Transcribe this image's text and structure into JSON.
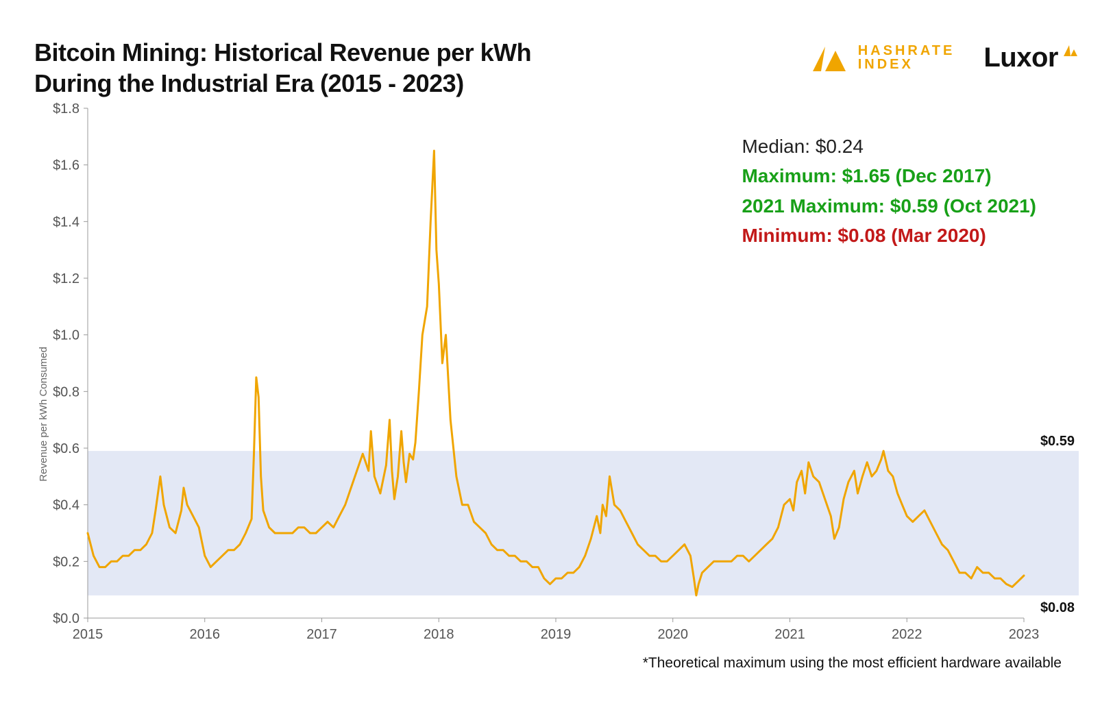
{
  "title_line1": "Bitcoin Mining: Historical Revenue per kWh",
  "title_line2": "During the Industrial Era (2015 - 2023)",
  "logos": {
    "hashrate_top": "HASHRATE",
    "hashrate_bottom": "INDEX",
    "luxor": "Luxor"
  },
  "stats": {
    "median": "Median: $0.24",
    "maximum": "Maximum: $1.65 (Dec 2017)",
    "max_2021": "2021 Maximum: $0.59 (Oct 2021)",
    "minimum": "Minimum: $0.08 (Mar 2020)"
  },
  "footnote": "*Theoretical maximum using the most efficient hardware available",
  "chart": {
    "type": "line",
    "ylabel": "Revenue per kWh Consumed",
    "ylim": [
      0.0,
      1.8
    ],
    "ytick_step": 0.2,
    "ytick_format": "$",
    "xticks_years": [
      2015,
      2016,
      2017,
      2018,
      2019,
      2020,
      2021,
      2022,
      2023
    ],
    "line_color": "#f0a500",
    "line_width": 3,
    "band_color": "#e3e8f5",
    "band_low": 0.08,
    "band_high": 0.59,
    "band_label_high": "$0.59",
    "band_label_low": "$0.08",
    "axis_color": "#999999",
    "tick_font_size": 20,
    "ylabel_font_size": 15,
    "series": [
      [
        2015.0,
        0.3
      ],
      [
        2015.05,
        0.22
      ],
      [
        2015.1,
        0.18
      ],
      [
        2015.15,
        0.18
      ],
      [
        2015.2,
        0.2
      ],
      [
        2015.25,
        0.2
      ],
      [
        2015.3,
        0.22
      ],
      [
        2015.35,
        0.22
      ],
      [
        2015.4,
        0.24
      ],
      [
        2015.45,
        0.24
      ],
      [
        2015.5,
        0.26
      ],
      [
        2015.55,
        0.3
      ],
      [
        2015.58,
        0.38
      ],
      [
        2015.62,
        0.5
      ],
      [
        2015.65,
        0.4
      ],
      [
        2015.7,
        0.32
      ],
      [
        2015.75,
        0.3
      ],
      [
        2015.8,
        0.38
      ],
      [
        2015.82,
        0.46
      ],
      [
        2015.85,
        0.4
      ],
      [
        2015.9,
        0.36
      ],
      [
        2015.95,
        0.32
      ],
      [
        2016.0,
        0.22
      ],
      [
        2016.05,
        0.18
      ],
      [
        2016.1,
        0.2
      ],
      [
        2016.15,
        0.22
      ],
      [
        2016.2,
        0.24
      ],
      [
        2016.25,
        0.24
      ],
      [
        2016.3,
        0.26
      ],
      [
        2016.35,
        0.3
      ],
      [
        2016.4,
        0.35
      ],
      [
        2016.42,
        0.58
      ],
      [
        2016.44,
        0.85
      ],
      [
        2016.46,
        0.78
      ],
      [
        2016.48,
        0.5
      ],
      [
        2016.5,
        0.38
      ],
      [
        2016.55,
        0.32
      ],
      [
        2016.6,
        0.3
      ],
      [
        2016.65,
        0.3
      ],
      [
        2016.7,
        0.3
      ],
      [
        2016.75,
        0.3
      ],
      [
        2016.8,
        0.32
      ],
      [
        2016.85,
        0.32
      ],
      [
        2016.9,
        0.3
      ],
      [
        2016.95,
        0.3
      ],
      [
        2017.0,
        0.32
      ],
      [
        2017.05,
        0.34
      ],
      [
        2017.1,
        0.32
      ],
      [
        2017.15,
        0.36
      ],
      [
        2017.2,
        0.4
      ],
      [
        2017.25,
        0.46
      ],
      [
        2017.3,
        0.52
      ],
      [
        2017.35,
        0.58
      ],
      [
        2017.4,
        0.52
      ],
      [
        2017.42,
        0.66
      ],
      [
        2017.45,
        0.5
      ],
      [
        2017.5,
        0.44
      ],
      [
        2017.55,
        0.54
      ],
      [
        2017.58,
        0.7
      ],
      [
        2017.6,
        0.52
      ],
      [
        2017.62,
        0.42
      ],
      [
        2017.65,
        0.5
      ],
      [
        2017.68,
        0.66
      ],
      [
        2017.7,
        0.55
      ],
      [
        2017.72,
        0.48
      ],
      [
        2017.75,
        0.58
      ],
      [
        2017.78,
        0.56
      ],
      [
        2017.8,
        0.62
      ],
      [
        2017.83,
        0.8
      ],
      [
        2017.86,
        1.0
      ],
      [
        2017.9,
        1.1
      ],
      [
        2017.93,
        1.4
      ],
      [
        2017.96,
        1.65
      ],
      [
        2017.98,
        1.3
      ],
      [
        2018.0,
        1.18
      ],
      [
        2018.03,
        0.9
      ],
      [
        2018.06,
        1.0
      ],
      [
        2018.1,
        0.7
      ],
      [
        2018.15,
        0.5
      ],
      [
        2018.2,
        0.4
      ],
      [
        2018.25,
        0.4
      ],
      [
        2018.3,
        0.34
      ],
      [
        2018.35,
        0.32
      ],
      [
        2018.4,
        0.3
      ],
      [
        2018.45,
        0.26
      ],
      [
        2018.5,
        0.24
      ],
      [
        2018.55,
        0.24
      ],
      [
        2018.6,
        0.22
      ],
      [
        2018.65,
        0.22
      ],
      [
        2018.7,
        0.2
      ],
      [
        2018.75,
        0.2
      ],
      [
        2018.8,
        0.18
      ],
      [
        2018.85,
        0.18
      ],
      [
        2018.9,
        0.14
      ],
      [
        2018.95,
        0.12
      ],
      [
        2019.0,
        0.14
      ],
      [
        2019.05,
        0.14
      ],
      [
        2019.1,
        0.16
      ],
      [
        2019.15,
        0.16
      ],
      [
        2019.2,
        0.18
      ],
      [
        2019.25,
        0.22
      ],
      [
        2019.3,
        0.28
      ],
      [
        2019.35,
        0.36
      ],
      [
        2019.38,
        0.3
      ],
      [
        2019.4,
        0.4
      ],
      [
        2019.43,
        0.36
      ],
      [
        2019.46,
        0.5
      ],
      [
        2019.5,
        0.4
      ],
      [
        2019.55,
        0.38
      ],
      [
        2019.6,
        0.34
      ],
      [
        2019.65,
        0.3
      ],
      [
        2019.7,
        0.26
      ],
      [
        2019.75,
        0.24
      ],
      [
        2019.8,
        0.22
      ],
      [
        2019.85,
        0.22
      ],
      [
        2019.9,
        0.2
      ],
      [
        2019.95,
        0.2
      ],
      [
        2020.0,
        0.22
      ],
      [
        2020.05,
        0.24
      ],
      [
        2020.1,
        0.26
      ],
      [
        2020.15,
        0.22
      ],
      [
        2020.18,
        0.14
      ],
      [
        2020.2,
        0.08
      ],
      [
        2020.22,
        0.12
      ],
      [
        2020.25,
        0.16
      ],
      [
        2020.3,
        0.18
      ],
      [
        2020.35,
        0.2
      ],
      [
        2020.4,
        0.2
      ],
      [
        2020.45,
        0.2
      ],
      [
        2020.5,
        0.2
      ],
      [
        2020.55,
        0.22
      ],
      [
        2020.6,
        0.22
      ],
      [
        2020.65,
        0.2
      ],
      [
        2020.7,
        0.22
      ],
      [
        2020.75,
        0.24
      ],
      [
        2020.8,
        0.26
      ],
      [
        2020.85,
        0.28
      ],
      [
        2020.9,
        0.32
      ],
      [
        2020.95,
        0.4
      ],
      [
        2021.0,
        0.42
      ],
      [
        2021.03,
        0.38
      ],
      [
        2021.06,
        0.48
      ],
      [
        2021.1,
        0.52
      ],
      [
        2021.13,
        0.44
      ],
      [
        2021.16,
        0.55
      ],
      [
        2021.2,
        0.5
      ],
      [
        2021.25,
        0.48
      ],
      [
        2021.3,
        0.42
      ],
      [
        2021.35,
        0.36
      ],
      [
        2021.38,
        0.28
      ],
      [
        2021.42,
        0.32
      ],
      [
        2021.46,
        0.42
      ],
      [
        2021.5,
        0.48
      ],
      [
        2021.55,
        0.52
      ],
      [
        2021.58,
        0.44
      ],
      [
        2021.62,
        0.5
      ],
      [
        2021.66,
        0.55
      ],
      [
        2021.7,
        0.5
      ],
      [
        2021.74,
        0.52
      ],
      [
        2021.78,
        0.56
      ],
      [
        2021.8,
        0.59
      ],
      [
        2021.84,
        0.52
      ],
      [
        2021.88,
        0.5
      ],
      [
        2021.92,
        0.44
      ],
      [
        2021.96,
        0.4
      ],
      [
        2022.0,
        0.36
      ],
      [
        2022.05,
        0.34
      ],
      [
        2022.1,
        0.36
      ],
      [
        2022.15,
        0.38
      ],
      [
        2022.2,
        0.34
      ],
      [
        2022.25,
        0.3
      ],
      [
        2022.3,
        0.26
      ],
      [
        2022.35,
        0.24
      ],
      [
        2022.4,
        0.2
      ],
      [
        2022.45,
        0.16
      ],
      [
        2022.5,
        0.16
      ],
      [
        2022.55,
        0.14
      ],
      [
        2022.6,
        0.18
      ],
      [
        2022.65,
        0.16
      ],
      [
        2022.7,
        0.16
      ],
      [
        2022.75,
        0.14
      ],
      [
        2022.8,
        0.14
      ],
      [
        2022.85,
        0.12
      ],
      [
        2022.9,
        0.11
      ],
      [
        2022.95,
        0.13
      ],
      [
        2023.0,
        0.15
      ]
    ]
  }
}
